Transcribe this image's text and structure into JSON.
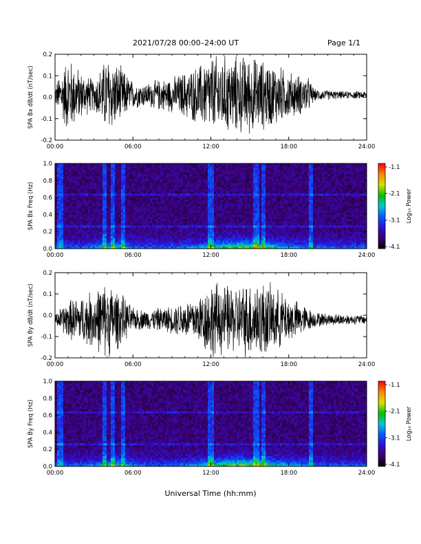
{
  "header": {
    "title": "2021/07/28  00:00–24:00 UT",
    "page": "Page 1/1"
  },
  "footer": {
    "xlabel": "Universal Time (hh:mm)"
  },
  "colorbar": {
    "label": "Log₁₀ Power",
    "ticks": [
      "-1.1",
      "-2.1",
      "-3.1",
      "-4.1"
    ]
  },
  "chart_data": [
    {
      "type": "line",
      "ylabel": "SPA Bx dB/dt (nT/sec)",
      "x_range": [
        0,
        24
      ],
      "ylim": [
        -0.2,
        0.2
      ],
      "xticks": [
        "00:00",
        "06:00",
        "12:00",
        "18:00",
        "24:00"
      ],
      "yticks": [
        "-0.2",
        "-0.1",
        "0.0",
        "0.1",
        "0.2"
      ],
      "series": [
        {
          "x": [
            0,
            1,
            2,
            3,
            4,
            5,
            6,
            7,
            8,
            9,
            10,
            11,
            12,
            13,
            14,
            15,
            16,
            17,
            18,
            19,
            19.5,
            20,
            21,
            22,
            23,
            24
          ],
          "amplitude": [
            0.05,
            0.2,
            0.12,
            0.08,
            0.2,
            0.15,
            0.07,
            0.06,
            0.08,
            0.09,
            0.12,
            0.15,
            0.2,
            0.2,
            0.2,
            0.2,
            0.18,
            0.16,
            0.12,
            0.1,
            0.09,
            0.03,
            0.025,
            0.02,
            0.02,
            0.02
          ],
          "offset": 0.01
        }
      ]
    },
    {
      "type": "heatmap",
      "ylabel": "SPA Bx Freq (Hz)",
      "x_range": [
        0,
        24
      ],
      "ylim": [
        0,
        1.0
      ],
      "xticks": [
        "00:00",
        "06:00",
        "12:00",
        "18:00",
        "24:00"
      ],
      "yticks": [
        "0.0",
        "0.2",
        "0.4",
        "0.6",
        "0.8",
        "1.0"
      ],
      "colorbar_range": [
        -4.1,
        -1.1
      ],
      "colorbar_ticks": [
        "-1.1",
        "-2.1",
        "-3.1",
        "-4.1"
      ],
      "colorbar_label": "Log₁₀ Power"
    },
    {
      "type": "line",
      "ylabel": "SPA By dB/dt (nT/sec)",
      "x_range": [
        0,
        24
      ],
      "ylim": [
        -0.2,
        0.2
      ],
      "xticks": [
        "00:00",
        "06:00",
        "12:00",
        "18:00",
        "24:00"
      ],
      "yticks": [
        "-0.2",
        "-0.1",
        "0.0",
        "0.1",
        "0.2"
      ],
      "series": [
        {
          "x": [
            0,
            1,
            2,
            3,
            4,
            5,
            6,
            7,
            8,
            9,
            10,
            11,
            12,
            13,
            14,
            15,
            16,
            17,
            18,
            19,
            20,
            21,
            22,
            23,
            24
          ],
          "amplitude": [
            0.03,
            0.1,
            0.12,
            0.15,
            0.2,
            0.14,
            0.06,
            0.05,
            0.06,
            0.07,
            0.1,
            0.12,
            0.2,
            0.18,
            0.17,
            0.2,
            0.2,
            0.16,
            0.12,
            0.08,
            0.04,
            0.03,
            0.03,
            0.025,
            0.025
          ],
          "offset": -0.02
        }
      ]
    },
    {
      "type": "heatmap",
      "ylabel": "SPA By Freq (Hz)",
      "x_range": [
        0,
        24
      ],
      "ylim": [
        0,
        1.0
      ],
      "xticks": [
        "00:00",
        "06:00",
        "12:00",
        "18:00",
        "24:00"
      ],
      "yticks": [
        "0.0",
        "0.2",
        "0.4",
        "0.6",
        "0.8",
        "1.0"
      ],
      "colorbar_range": [
        -4.1,
        -1.1
      ],
      "colorbar_ticks": [
        "-1.1",
        "-2.1",
        "-3.1",
        "-4.1"
      ],
      "colorbar_label": "Log₁₀ Power"
    }
  ]
}
